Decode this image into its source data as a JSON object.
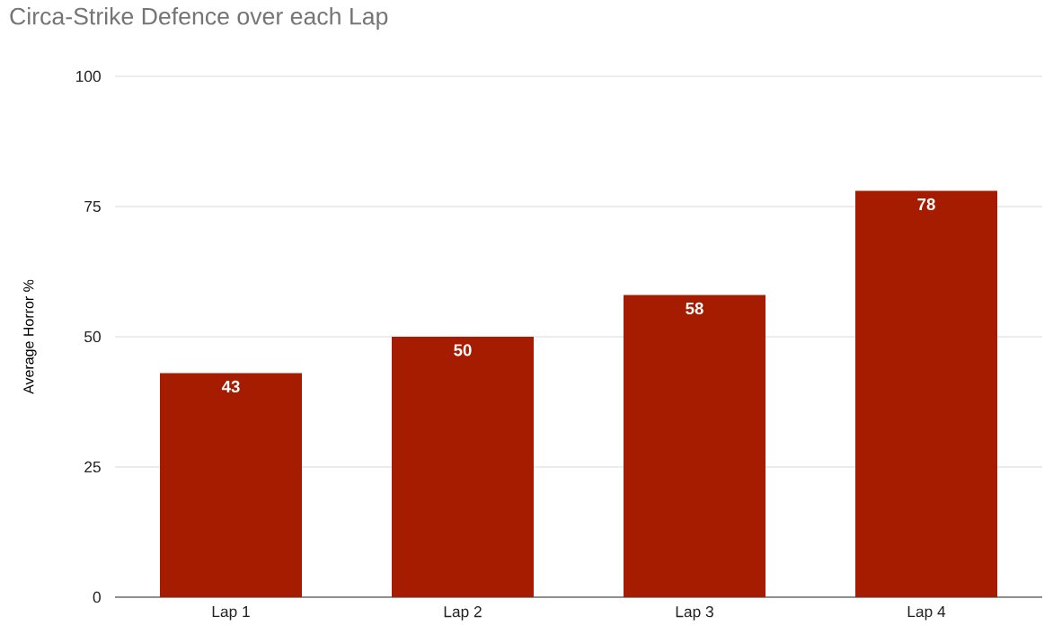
{
  "chart_data": {
    "type": "bar",
    "title": "Circa-Strike Defence over each Lap",
    "ylabel": "Average Horror %",
    "categories": [
      "Lap 1",
      "Lap 2",
      "Lap 3",
      "Lap 4"
    ],
    "values": [
      43,
      50,
      58,
      78
    ],
    "color": "#a61c00",
    "ylim": [
      0,
      100
    ],
    "yticks": [
      0,
      25,
      50,
      75,
      100
    ],
    "grid": "y",
    "data_labels": true
  }
}
